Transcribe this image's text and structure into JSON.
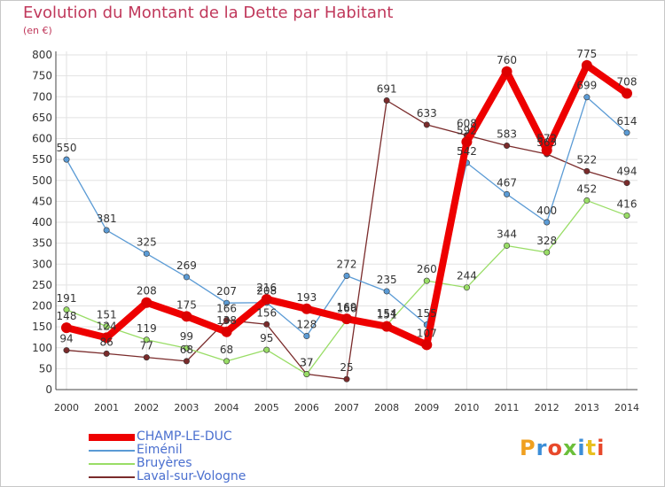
{
  "title": "Evolution du Montant de la Dette par Habitant",
  "subtitle": "(en €)",
  "logo": {
    "text": "Proxiti",
    "colors": [
      "#f0a020",
      "#3c8ed8",
      "#e8492b",
      "#6bbf3a",
      "#3c8ed8",
      "#e8c020",
      "#e8492b"
    ]
  },
  "chart_data": {
    "type": "line",
    "title": "Evolution du Montant de la Dette par Habitant",
    "ylabel": "(en €)",
    "x": [
      "2000",
      "2001",
      "2002",
      "2003",
      "2004",
      "2005",
      "2006",
      "2007",
      "2008",
      "2009",
      "2010",
      "2011",
      "2012",
      "2013",
      "2014"
    ],
    "ylim": [
      0,
      800
    ],
    "yticks": [
      0,
      50,
      100,
      150,
      200,
      250,
      300,
      350,
      400,
      450,
      500,
      550,
      600,
      650,
      700,
      750,
      800
    ],
    "grid": true,
    "legend_position": "bottom-left",
    "series": [
      {
        "name": "CHAMP-LE-DUC",
        "color": "#ee0000",
        "values": [
          148,
          124,
          208,
          175,
          138,
          216,
          193,
          169,
          151,
          107,
          592,
          760,
          572,
          775,
          708
        ]
      },
      {
        "name": "Eiménil",
        "color": "#5b9bd5",
        "values": [
          550,
          381,
          325,
          269,
          207,
          208,
          128,
          272,
          235,
          155,
          542,
          467,
          400,
          699,
          614
        ]
      },
      {
        "name": "Bruyères",
        "color": "#99dd66",
        "values": [
          191,
          151,
          119,
          99,
          68,
          95,
          37,
          166,
          154,
          260,
          244,
          344,
          328,
          452,
          416
        ]
      },
      {
        "name": "Laval-sur-Vologne",
        "color": "#7a2b2b",
        "values": [
          94,
          86,
          77,
          68,
          166,
          156,
          37,
          25,
          691,
          633,
          608,
          583,
          563,
          522,
          494
        ]
      }
    ]
  }
}
